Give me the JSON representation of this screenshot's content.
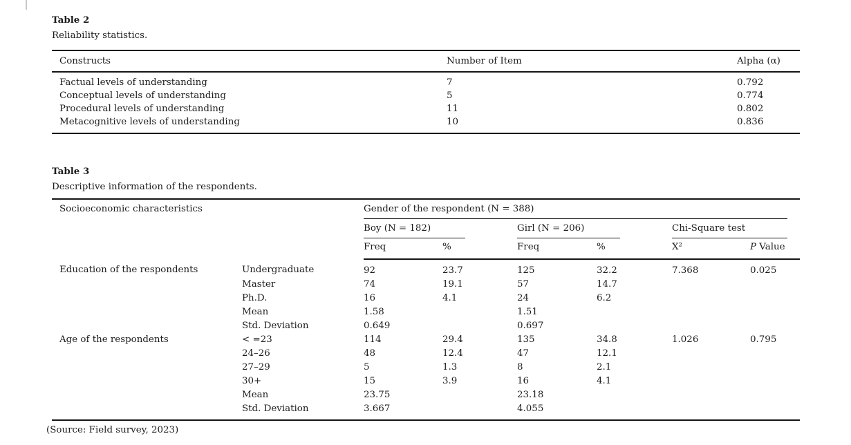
{
  "page": {
    "background": "#ffffff",
    "text_color": "#1c1c1c",
    "rule_color": "#141414"
  },
  "table2": {
    "title": "Table 2",
    "caption": "Reliability statistics.",
    "columns": {
      "constructs": "Constructs",
      "num_items": "Number of Item",
      "alpha": "Alpha (α)"
    },
    "rows": [
      [
        "Factual levels of understanding",
        "7",
        "0.792"
      ],
      [
        "Conceptual levels of understanding",
        "5",
        "0.774"
      ],
      [
        "Procedural levels of understanding",
        "11",
        "0.802"
      ],
      [
        "Metacognitive levels of understanding",
        "10",
        "0.836"
      ]
    ]
  },
  "table3": {
    "title": "Table 3",
    "caption": "Descriptive information of the respondents.",
    "header": {
      "stub": "Socioeconomic characteristics",
      "gender_group": "Gender of the respondent (N = 388)",
      "boy_group": "Boy (N = 182)",
      "girl_group": "Girl (N = 206)",
      "chi_group": "Chi-Square test",
      "boy_freq": "Freq",
      "boy_pct": "%",
      "girl_freq": "Freq",
      "girl_pct": "%",
      "chi_stat": "X²",
      "p_italic": "P",
      "p_rest": " Value"
    },
    "rows": [
      [
        "Education of the respondents",
        "Undergraduate",
        "92",
        "23.7",
        "125",
        "32.2",
        "7.368",
        "0.025"
      ],
      [
        "",
        "Master",
        "74",
        "19.1",
        "57",
        "14.7",
        "",
        ""
      ],
      [
        "",
        "Ph.D.",
        "16",
        "4.1",
        "24",
        "6.2",
        "",
        ""
      ],
      [
        "",
        "Mean",
        "1.58",
        "",
        "1.51",
        "",
        "",
        ""
      ],
      [
        "",
        "Std. Deviation",
        "0.649",
        "",
        "0.697",
        "",
        "",
        ""
      ],
      [
        "Age of the respondents",
        "< =23",
        "114",
        "29.4",
        "135",
        "34.8",
        "1.026",
        "0.795"
      ],
      [
        "",
        "24–26",
        "48",
        "12.4",
        "47",
        "12.1",
        "",
        ""
      ],
      [
        "",
        "27–29",
        "5",
        "1.3",
        "8",
        "2.1",
        "",
        ""
      ],
      [
        "",
        "30+",
        "15",
        "3.9",
        "16",
        "4.1",
        "",
        ""
      ],
      [
        "",
        "Mean",
        "23.75",
        "",
        "23.18",
        "",
        "",
        ""
      ],
      [
        "",
        "Std. Deviation",
        "3.667",
        "",
        "4.055",
        "",
        "",
        ""
      ]
    ],
    "source": "(Source: Field survey, 2023)"
  }
}
